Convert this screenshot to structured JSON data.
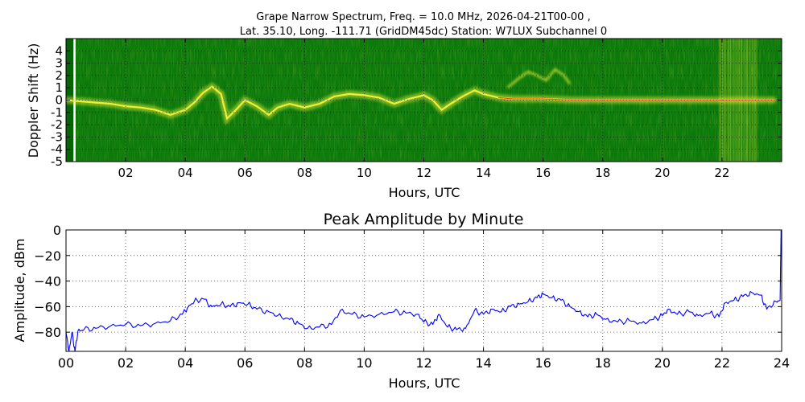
{
  "figure": {
    "title_line1": "Grape Narrow Spectrum, Freq. = 10.0 MHz, 2026-04-21T00-00 ,",
    "title_line2": "Lat.  35.10, Long. -111.71 (GridDM45dc) Station: W7LUX Subchannel 0"
  },
  "colors": {
    "spectrogram_background": "#0b7a0b",
    "spectrogram_dark_band": "#056405",
    "spectrogram_signal": "#f2f23a",
    "spectrogram_hot": "#ff3b00",
    "amplitude_line": "#0000ff"
  },
  "chart_data": [
    {
      "type": "heatmap",
      "xlabel": "Hours, UTC",
      "ylabel": "Doppler Shift (Hz)",
      "xlim": [
        0,
        24
      ],
      "ylim": [
        -5,
        5
      ],
      "x_ticks": [
        {
          "value": 2,
          "label": "02"
        },
        {
          "value": 4,
          "label": "04"
        },
        {
          "value": 6,
          "label": "06"
        },
        {
          "value": 8,
          "label": "08"
        },
        {
          "value": 10,
          "label": "10"
        },
        {
          "value": 12,
          "label": "12"
        },
        {
          "value": 14,
          "label": "14"
        },
        {
          "value": 16,
          "label": "16"
        },
        {
          "value": 18,
          "label": "18"
        },
        {
          "value": 20,
          "label": "20"
        },
        {
          "value": 22,
          "label": "22"
        }
      ],
      "y_ticks": [
        {
          "value": 4,
          "label": "4"
        },
        {
          "value": 3,
          "label": "3"
        },
        {
          "value": 2,
          "label": "2"
        },
        {
          "value": 1,
          "label": "1"
        },
        {
          "value": 0,
          "label": "0"
        },
        {
          "value": -1,
          "label": "-1"
        },
        {
          "value": -2,
          "label": "-2"
        },
        {
          "value": -3,
          "label": "-3"
        },
        {
          "value": -4,
          "label": "-4"
        },
        {
          "value": -5,
          "label": "-5"
        }
      ],
      "grid": true,
      "doppler_trace": [
        {
          "x": 0.0,
          "y": 0.0
        },
        {
          "x": 0.5,
          "y": -0.1
        },
        {
          "x": 1.0,
          "y": -0.2
        },
        {
          "x": 1.5,
          "y": -0.3
        },
        {
          "x": 2.0,
          "y": -0.5
        },
        {
          "x": 2.5,
          "y": -0.6
        },
        {
          "x": 3.0,
          "y": -0.8
        },
        {
          "x": 3.5,
          "y": -1.2
        },
        {
          "x": 4.0,
          "y": -0.8
        },
        {
          "x": 4.3,
          "y": -0.2
        },
        {
          "x": 4.6,
          "y": 0.6
        },
        {
          "x": 4.9,
          "y": 1.1
        },
        {
          "x": 5.2,
          "y": 0.5
        },
        {
          "x": 5.4,
          "y": -1.5
        },
        {
          "x": 5.7,
          "y": -0.8
        },
        {
          "x": 6.0,
          "y": 0.0
        },
        {
          "x": 6.4,
          "y": -0.5
        },
        {
          "x": 6.8,
          "y": -1.2
        },
        {
          "x": 7.1,
          "y": -0.6
        },
        {
          "x": 7.5,
          "y": -0.3
        },
        {
          "x": 8.0,
          "y": -0.6
        },
        {
          "x": 8.5,
          "y": -0.3
        },
        {
          "x": 9.0,
          "y": 0.3
        },
        {
          "x": 9.5,
          "y": 0.5
        },
        {
          "x": 10.0,
          "y": 0.4
        },
        {
          "x": 10.5,
          "y": 0.2
        },
        {
          "x": 11.0,
          "y": -0.3
        },
        {
          "x": 11.5,
          "y": 0.1
        },
        {
          "x": 12.0,
          "y": 0.4
        },
        {
          "x": 12.3,
          "y": 0.0
        },
        {
          "x": 12.6,
          "y": -0.8
        },
        {
          "x": 12.9,
          "y": -0.3
        },
        {
          "x": 13.3,
          "y": 0.3
        },
        {
          "x": 13.7,
          "y": 0.8
        },
        {
          "x": 14.0,
          "y": 0.5
        },
        {
          "x": 14.5,
          "y": 0.2
        },
        {
          "x": 15.0,
          "y": 0.1
        },
        {
          "x": 16.0,
          "y": 0.1
        },
        {
          "x": 17.0,
          "y": 0.0
        },
        {
          "x": 18.0,
          "y": 0.0
        },
        {
          "x": 19.0,
          "y": 0.0
        },
        {
          "x": 20.0,
          "y": 0.0
        },
        {
          "x": 21.0,
          "y": 0.0
        },
        {
          "x": 22.0,
          "y": 0.0
        },
        {
          "x": 23.0,
          "y": 0.0
        },
        {
          "x": 23.8,
          "y": 0.0
        }
      ],
      "upper_trace": [
        {
          "x": 14.8,
          "y": 1.0
        },
        {
          "x": 15.2,
          "y": 1.8
        },
        {
          "x": 15.5,
          "y": 2.3
        },
        {
          "x": 15.8,
          "y": 2.0
        },
        {
          "x": 16.1,
          "y": 1.6
        },
        {
          "x": 16.4,
          "y": 2.5
        },
        {
          "x": 16.7,
          "y": 2.0
        },
        {
          "x": 16.9,
          "y": 1.3
        }
      ],
      "noise_bands": [
        {
          "x0": 0.0,
          "x1": 0.25,
          "kind": "dark"
        },
        {
          "x0": 0.25,
          "x1": 0.32,
          "kind": "white"
        },
        {
          "x0": 21.9,
          "x1": 23.2,
          "kind": "broadband"
        }
      ]
    },
    {
      "type": "line",
      "title": "Peak Amplitude by Minute",
      "xlabel": "Hours, UTC",
      "ylabel": "Amplitude, dBm",
      "xlim": [
        0,
        24
      ],
      "ylim": [
        -95,
        0
      ],
      "x_ticks": [
        {
          "value": 0,
          "label": "00"
        },
        {
          "value": 2,
          "label": "02"
        },
        {
          "value": 4,
          "label": "04"
        },
        {
          "value": 6,
          "label": "06"
        },
        {
          "value": 8,
          "label": "08"
        },
        {
          "value": 10,
          "label": "10"
        },
        {
          "value": 12,
          "label": "12"
        },
        {
          "value": 14,
          "label": "14"
        },
        {
          "value": 16,
          "label": "16"
        },
        {
          "value": 18,
          "label": "18"
        },
        {
          "value": 20,
          "label": "20"
        },
        {
          "value": 22,
          "label": "22"
        },
        {
          "value": 24,
          "label": "24"
        }
      ],
      "y_ticks": [
        {
          "value": 0,
          "label": "0"
        },
        {
          "value": -20,
          "label": "−20"
        },
        {
          "value": -40,
          "label": "−40"
        },
        {
          "value": -60,
          "label": "−60"
        },
        {
          "value": -80,
          "label": "−80"
        }
      ],
      "grid": true,
      "series": [
        {
          "values": [
            {
              "x": 0.0,
              "y": -80
            },
            {
              "x": 0.1,
              "y": -95
            },
            {
              "x": 0.2,
              "y": -80
            },
            {
              "x": 0.3,
              "y": -95
            },
            {
              "x": 0.4,
              "y": -79
            },
            {
              "x": 0.6,
              "y": -78
            },
            {
              "x": 1.0,
              "y": -77
            },
            {
              "x": 1.5,
              "y": -75
            },
            {
              "x": 2.0,
              "y": -74
            },
            {
              "x": 2.5,
              "y": -75
            },
            {
              "x": 3.0,
              "y": -73
            },
            {
              "x": 3.5,
              "y": -71
            },
            {
              "x": 3.9,
              "y": -66
            },
            {
              "x": 4.1,
              "y": -60
            },
            {
              "x": 4.3,
              "y": -56
            },
            {
              "x": 4.6,
              "y": -54
            },
            {
              "x": 4.9,
              "y": -60
            },
            {
              "x": 5.2,
              "y": -58
            },
            {
              "x": 5.5,
              "y": -60
            },
            {
              "x": 5.8,
              "y": -57
            },
            {
              "x": 6.1,
              "y": -58
            },
            {
              "x": 6.4,
              "y": -62
            },
            {
              "x": 6.8,
              "y": -64
            },
            {
              "x": 7.1,
              "y": -67
            },
            {
              "x": 7.5,
              "y": -70
            },
            {
              "x": 7.8,
              "y": -73
            },
            {
              "x": 8.1,
              "y": -77
            },
            {
              "x": 8.5,
              "y": -76
            },
            {
              "x": 8.9,
              "y": -74
            },
            {
              "x": 9.2,
              "y": -63
            },
            {
              "x": 9.6,
              "y": -66
            },
            {
              "x": 10.0,
              "y": -68
            },
            {
              "x": 10.5,
              "y": -66
            },
            {
              "x": 11.0,
              "y": -64
            },
            {
              "x": 11.4,
              "y": -65
            },
            {
              "x": 11.8,
              "y": -66
            },
            {
              "x": 12.0,
              "y": -72
            },
            {
              "x": 12.3,
              "y": -74
            },
            {
              "x": 12.5,
              "y": -66
            },
            {
              "x": 12.8,
              "y": -76
            },
            {
              "x": 13.1,
              "y": -78
            },
            {
              "x": 13.4,
              "y": -77
            },
            {
              "x": 13.7,
              "y": -63
            },
            {
              "x": 14.0,
              "y": -66
            },
            {
              "x": 14.3,
              "y": -62
            },
            {
              "x": 14.6,
              "y": -64
            },
            {
              "x": 14.9,
              "y": -60
            },
            {
              "x": 15.2,
              "y": -58
            },
            {
              "x": 15.5,
              "y": -56
            },
            {
              "x": 15.8,
              "y": -53
            },
            {
              "x": 16.0,
              "y": -50
            },
            {
              "x": 16.3,
              "y": -53
            },
            {
              "x": 16.6,
              "y": -55
            },
            {
              "x": 16.9,
              "y": -60
            },
            {
              "x": 17.2,
              "y": -64
            },
            {
              "x": 17.5,
              "y": -68
            },
            {
              "x": 17.8,
              "y": -66
            },
            {
              "x": 18.1,
              "y": -70
            },
            {
              "x": 18.5,
              "y": -72
            },
            {
              "x": 18.9,
              "y": -71
            },
            {
              "x": 19.3,
              "y": -73
            },
            {
              "x": 19.7,
              "y": -70
            },
            {
              "x": 20.0,
              "y": -67
            },
            {
              "x": 20.2,
              "y": -62
            },
            {
              "x": 20.5,
              "y": -66
            },
            {
              "x": 20.9,
              "y": -64
            },
            {
              "x": 21.2,
              "y": -67
            },
            {
              "x": 21.6,
              "y": -65
            },
            {
              "x": 21.9,
              "y": -68
            },
            {
              "x": 22.1,
              "y": -57
            },
            {
              "x": 22.4,
              "y": -55
            },
            {
              "x": 22.7,
              "y": -52
            },
            {
              "x": 23.0,
              "y": -49
            },
            {
              "x": 23.3,
              "y": -51
            },
            {
              "x": 23.5,
              "y": -62
            },
            {
              "x": 23.8,
              "y": -56
            },
            {
              "x": 23.95,
              "y": -55
            },
            {
              "x": 23.98,
              "y": 0
            }
          ]
        }
      ]
    }
  ]
}
